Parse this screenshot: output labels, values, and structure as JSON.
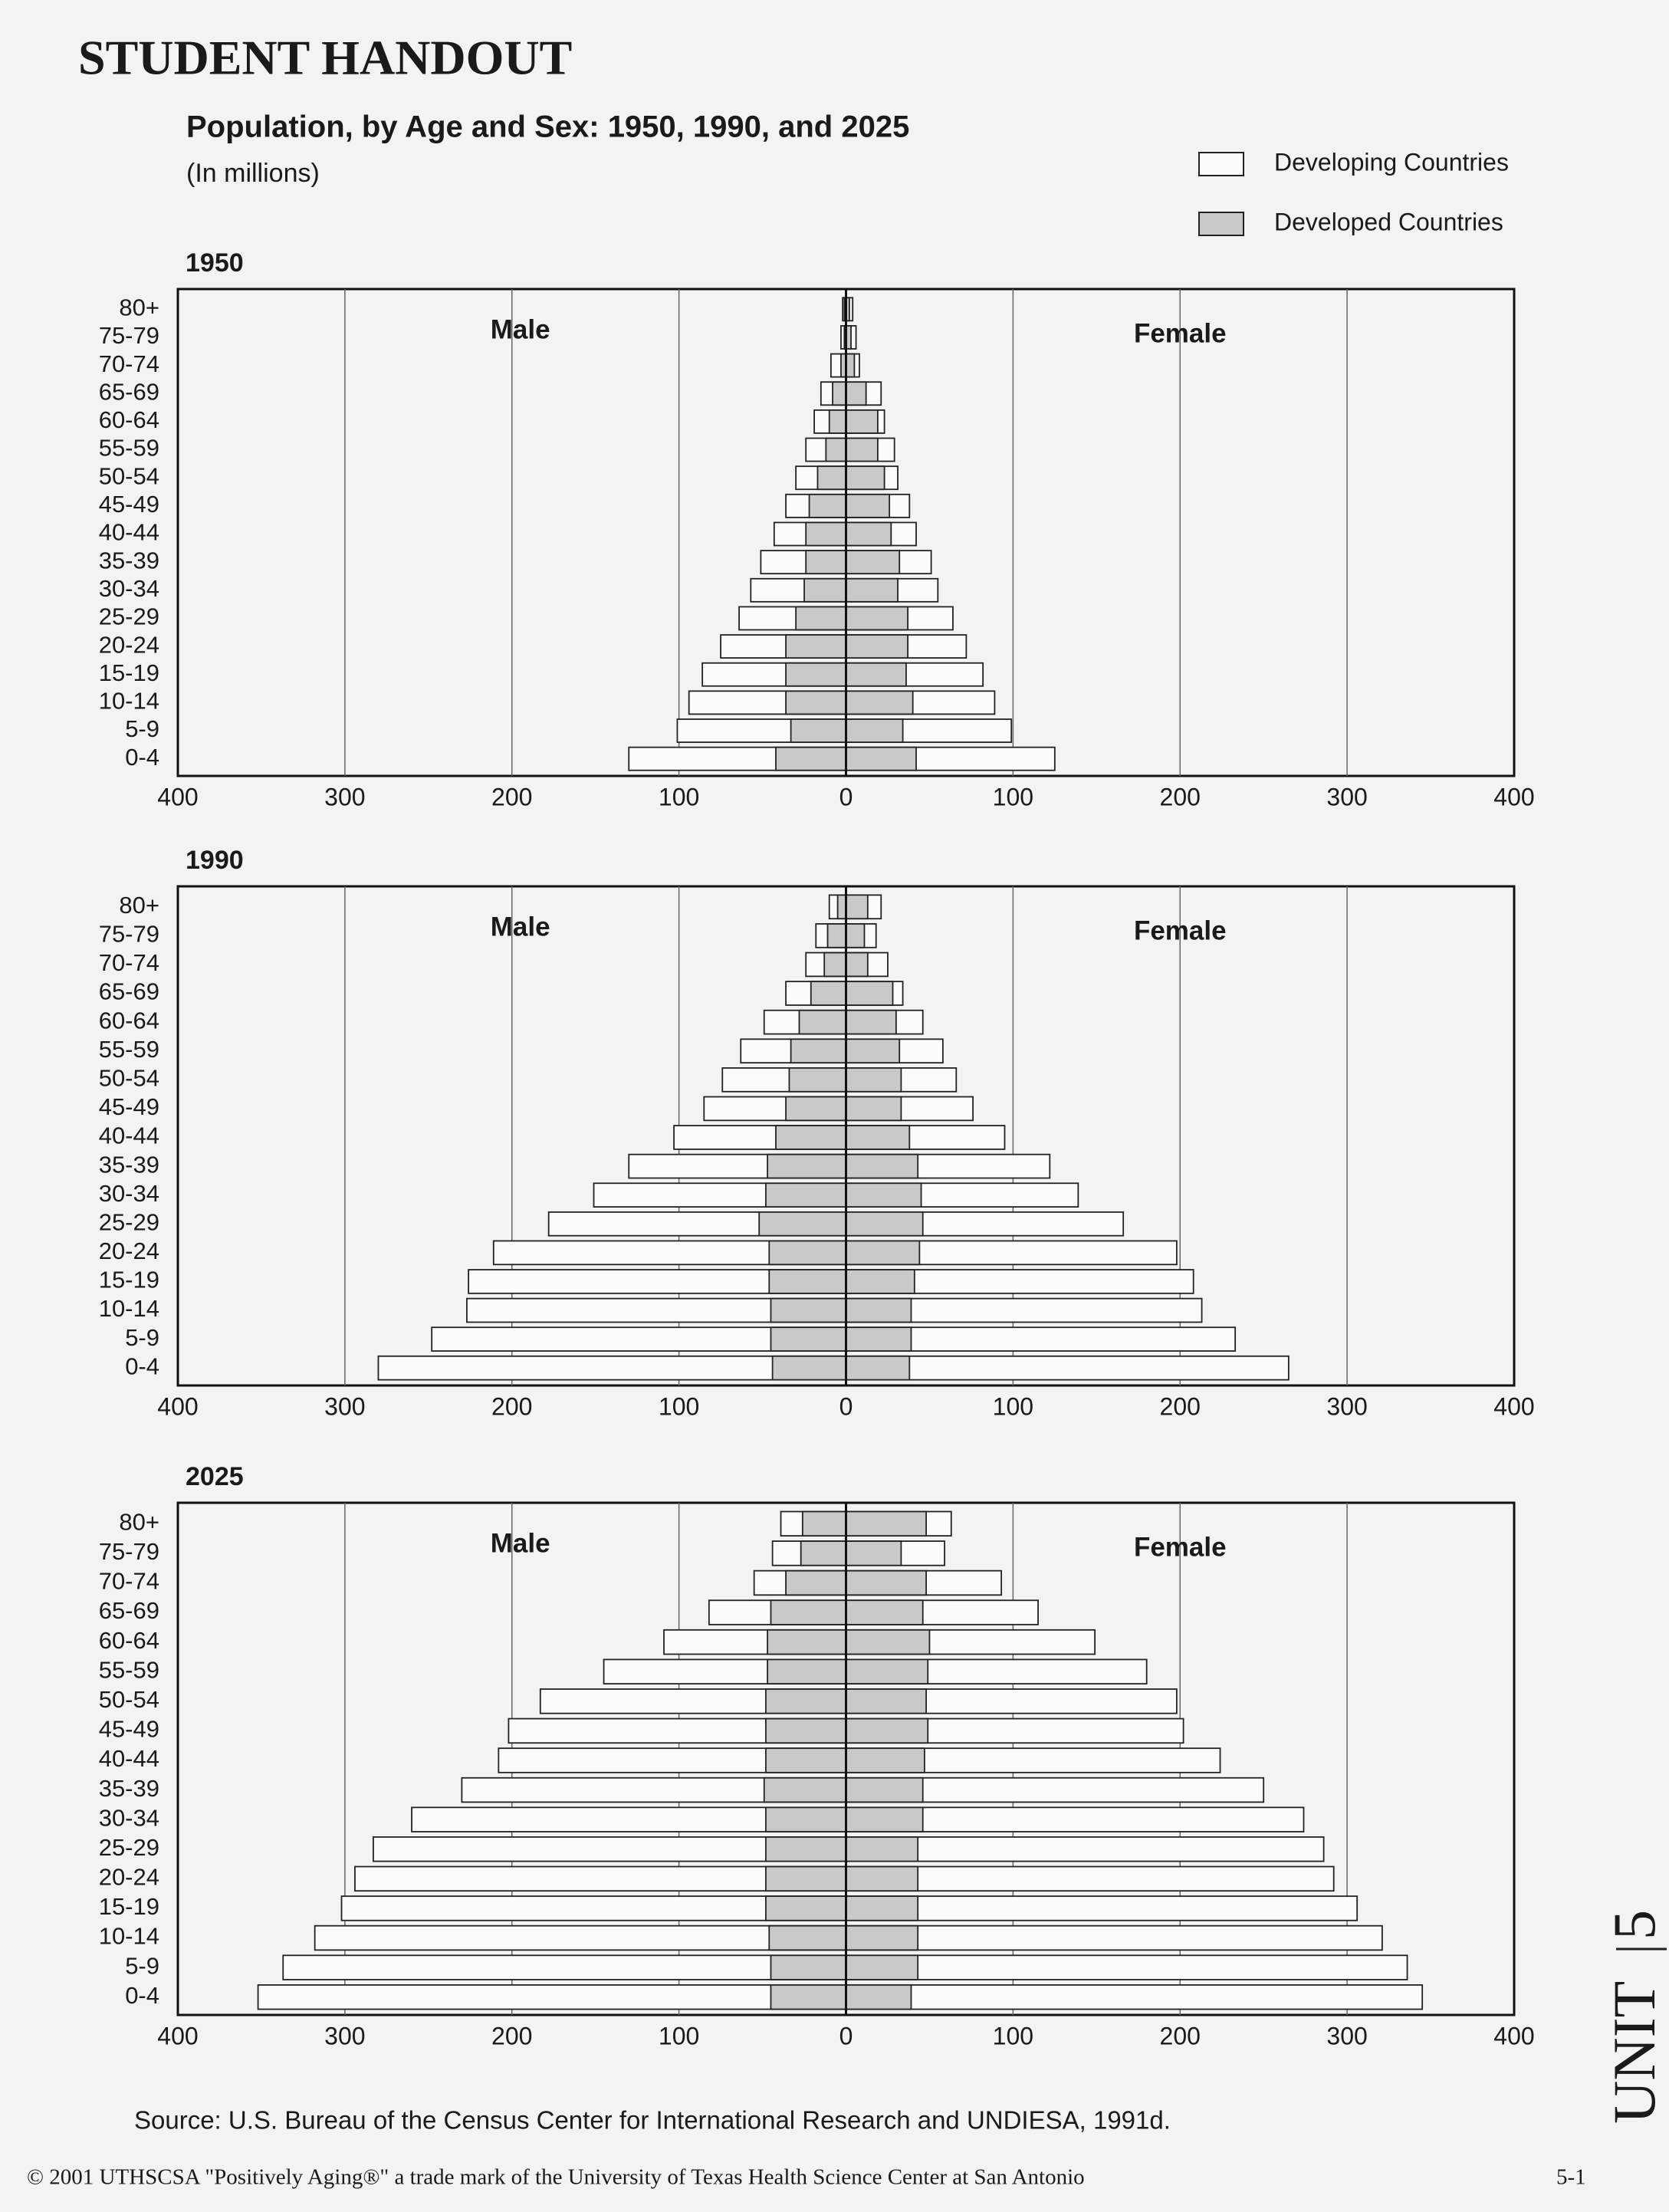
{
  "header": {
    "title": "STUDENT HANDOUT",
    "heading": "Population, by Age and Sex:  1950, 1990, and 2025",
    "subheading": "(In millions)"
  },
  "legend": [
    {
      "name": "Developing Countries",
      "color": "#fbfbfa"
    },
    {
      "name": "Developed Countries",
      "color": "#c9c9c7"
    }
  ],
  "chart_data": [
    {
      "type": "pyramid",
      "title": "1950",
      "left_label": "Male",
      "right_label": "Female",
      "categories": [
        "80+",
        "75-79",
        "70-74",
        "65-69",
        "60-64",
        "55-59",
        "50-54",
        "45-49",
        "40-44",
        "35-39",
        "30-34",
        "25-29",
        "20-24",
        "15-19",
        "10-14",
        "5-9",
        "0-4"
      ],
      "xlim": [
        -400,
        400
      ],
      "xticks": [
        {
          "value": -400,
          "label": "400"
        },
        {
          "value": -300,
          "label": "300"
        },
        {
          "value": -200,
          "label": "200"
        },
        {
          "value": -100,
          "label": "100"
        },
        0,
        100,
        200,
        300,
        400
      ],
      "grid": true,
      "series": [
        {
          "color": "#fbfbfa",
          "male": [
            2,
            3,
            9,
            15,
            19,
            24,
            30,
            36,
            43,
            51,
            57,
            64,
            75,
            86,
            94,
            101,
            130
          ],
          "female": [
            4,
            6,
            8,
            21,
            23,
            29,
            31,
            38,
            42,
            51,
            55,
            64,
            72,
            82,
            89,
            99,
            125
          ]
        },
        {
          "color": "#c9c9c7",
          "male": [
            1,
            1,
            3,
            8,
            10,
            12,
            17,
            22,
            24,
            24,
            25,
            30,
            36,
            36,
            36,
            33,
            42
          ],
          "female": [
            2,
            3,
            5,
            12,
            19,
            19,
            23,
            26,
            27,
            32,
            31,
            37,
            37,
            36,
            40,
            34,
            42
          ]
        }
      ]
    },
    {
      "type": "pyramid",
      "title": "1990",
      "left_label": "Male",
      "right_label": "Female",
      "categories": [
        "80+",
        "75-79",
        "70-74",
        "65-69",
        "60-64",
        "55-59",
        "50-54",
        "45-49",
        "40-44",
        "35-39",
        "30-34",
        "25-29",
        "20-24",
        "15-19",
        "10-14",
        "5-9",
        "0-4"
      ],
      "xlim": [
        -400,
        400
      ],
      "xticks": [
        {
          "value": -400,
          "label": "400"
        },
        {
          "value": -300,
          "label": "300"
        },
        {
          "value": -200,
          "label": "200"
        },
        {
          "value": -100,
          "label": "100"
        },
        0,
        100,
        200,
        300,
        400
      ],
      "grid": true,
      "series": [
        {
          "color": "#fbfbfa",
          "male": [
            10,
            18,
            24,
            36,
            49,
            63,
            74,
            85,
            103,
            130,
            151,
            178,
            211,
            226,
            227,
            248,
            280
          ],
          "female": [
            21,
            18,
            25,
            34,
            46,
            58,
            66,
            76,
            95,
            122,
            139,
            166,
            198,
            208,
            213,
            233,
            265
          ]
        },
        {
          "color": "#c9c9c7",
          "male": [
            5,
            11,
            13,
            21,
            28,
            33,
            34,
            36,
            42,
            47,
            48,
            52,
            46,
            46,
            45,
            45,
            44
          ],
          "female": [
            13,
            11,
            13,
            28,
            30,
            32,
            33,
            33,
            38,
            43,
            45,
            46,
            44,
            41,
            39,
            39,
            38
          ]
        }
      ]
    },
    {
      "type": "pyramid",
      "title": "2025",
      "left_label": "Male",
      "right_label": "Female",
      "categories": [
        "80+",
        "75-79",
        "70-74",
        "65-69",
        "60-64",
        "55-59",
        "50-54",
        "45-49",
        "40-44",
        "35-39",
        "30-34",
        "25-29",
        "20-24",
        "15-19",
        "10-14",
        "5-9",
        "0-4"
      ],
      "xlim": [
        -400,
        400
      ],
      "xticks": [
        {
          "value": -400,
          "label": "400"
        },
        {
          "value": -300,
          "label": "300"
        },
        {
          "value": -200,
          "label": "200"
        },
        {
          "value": -100,
          "label": "100"
        },
        0,
        100,
        200,
        300,
        400
      ],
      "grid": true,
      "series": [
        {
          "color": "#fbfbfa",
          "male": [
            39,
            44,
            55,
            82,
            109,
            145,
            183,
            202,
            208,
            230,
            260,
            283,
            294,
            302,
            318,
            337,
            352
          ],
          "female": [
            63,
            59,
            93,
            115,
            149,
            180,
            198,
            202,
            224,
            250,
            274,
            286,
            292,
            306,
            321,
            336,
            345
          ]
        },
        {
          "color": "#c9c9c7",
          "male": [
            26,
            27,
            36,
            45,
            47,
            47,
            48,
            48,
            48,
            49,
            48,
            48,
            48,
            48,
            46,
            45,
            45
          ],
          "female": [
            48,
            33,
            48,
            46,
            50,
            49,
            48,
            49,
            47,
            46,
            46,
            43,
            43,
            43,
            43,
            43,
            39
          ]
        }
      ]
    }
  ],
  "source": "Source: U.S. Bureau of the Census Center for International Research and UNDIESA, 1991d.",
  "footer": {
    "copyright": "© 2001 UTHSCSA \"Positively Aging®\" a trade mark of the University of Texas Health Science Center at San Antonio",
    "page": "5-1",
    "unit": "UNIT",
    "unit_number": "5"
  }
}
